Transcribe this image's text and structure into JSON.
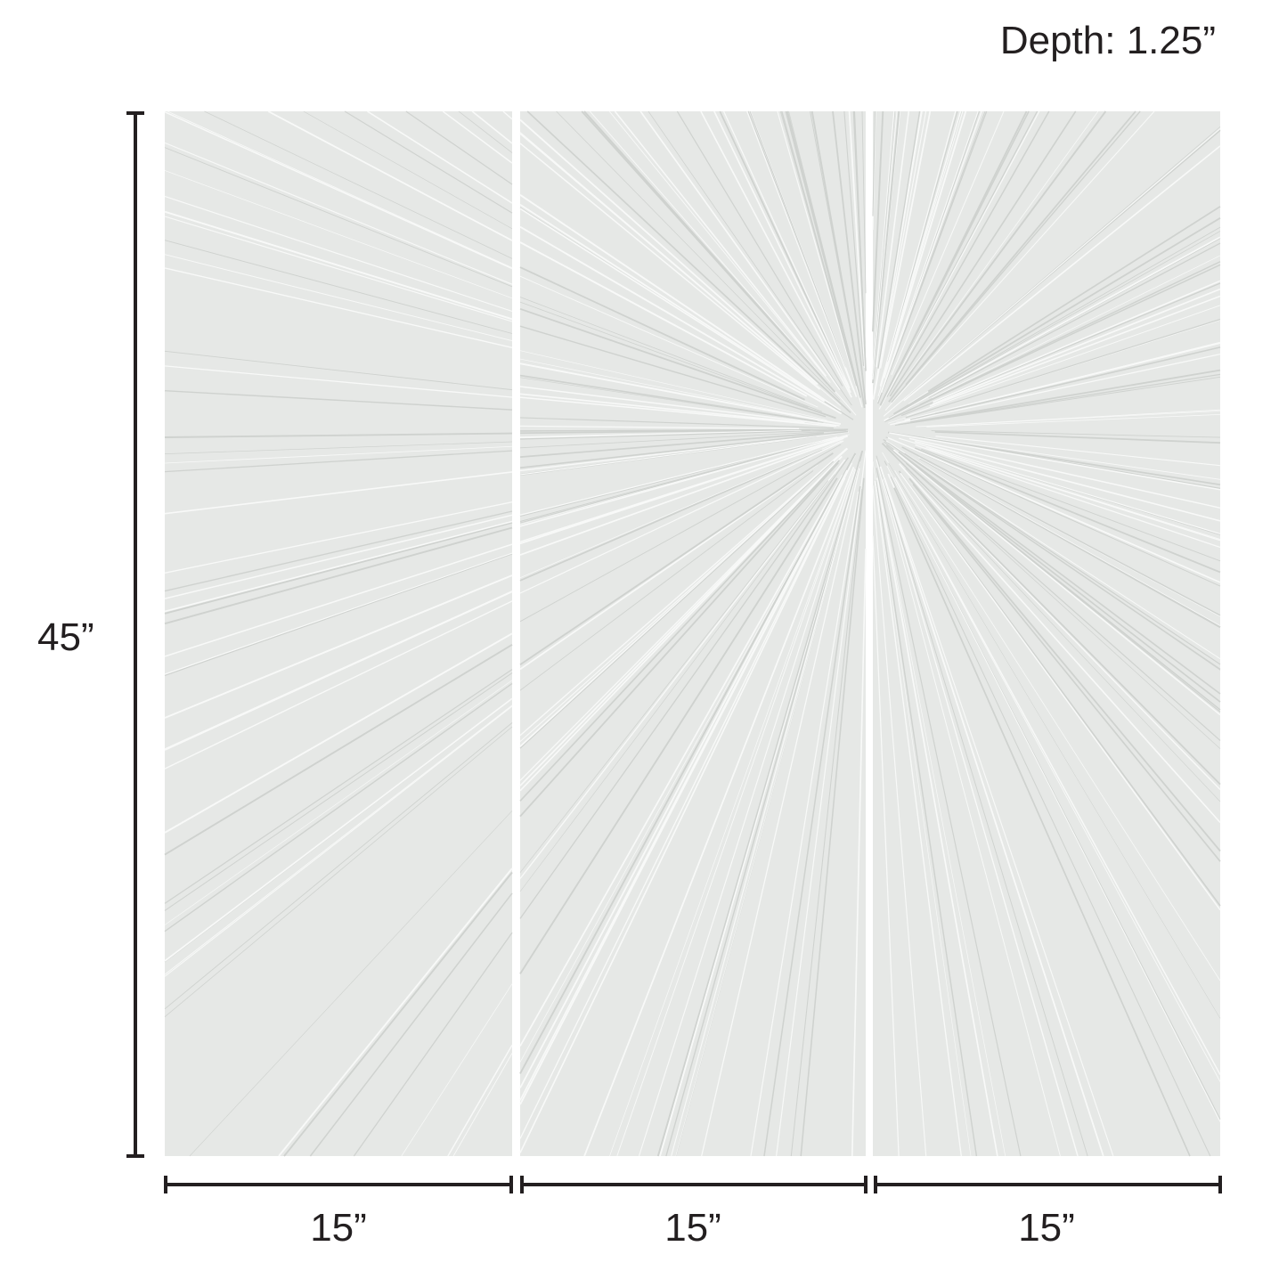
{
  "depth_label": "Depth: 1.25”",
  "height_label": "45”",
  "panel_widths": [
    "15”",
    "15”",
    "15”"
  ],
  "colors": {
    "panel": "#e6e8e6",
    "dimension_line": "#231f20",
    "background": "#ffffff"
  }
}
